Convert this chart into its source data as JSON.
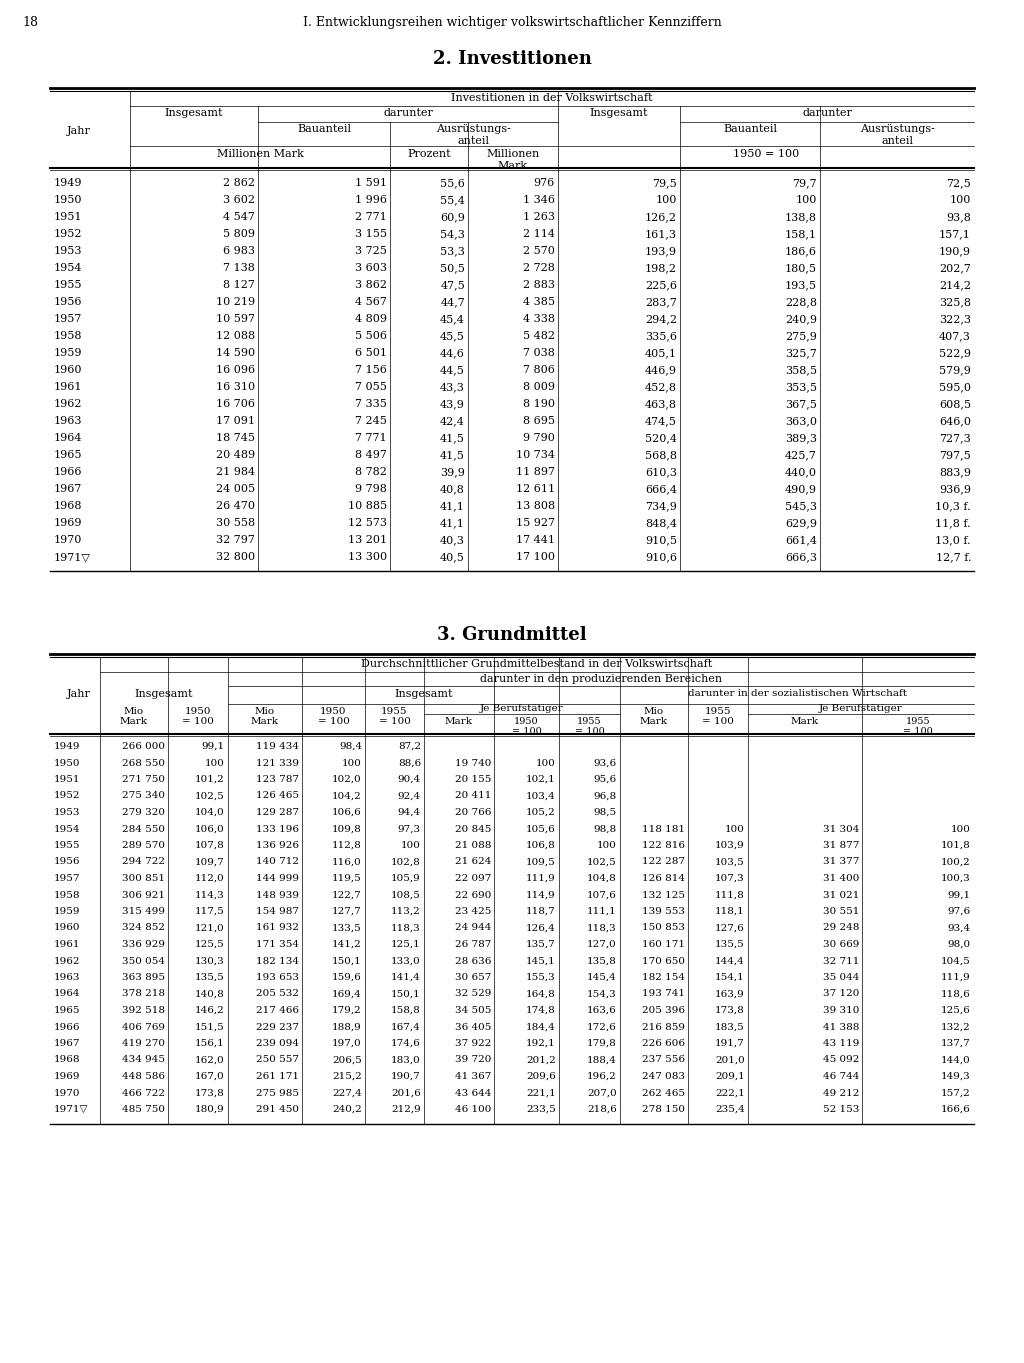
{
  "page_number": "18",
  "page_header": "I. Entwicklungsreihen wichtiger volkswirtschaftlicher Kennziffern",
  "section1_title": "2. Investitionen",
  "section2_title": "3. Grundmittel",
  "table1_data": [
    [
      "1949",
      "2 862",
      "1 591",
      "55,6",
      "976",
      "79,5",
      "79,7",
      "72,5"
    ],
    [
      "1950",
      "3 602",
      "1 996",
      "55,4",
      "1 346",
      "100",
      "100",
      "100"
    ],
    [
      "1951",
      "4 547",
      "2 771",
      "60,9",
      "1 263",
      "126,2",
      "138,8",
      "93,8"
    ],
    [
      "1952",
      "5 809",
      "3 155",
      "54,3",
      "2 114",
      "161,3",
      "158,1",
      "157,1"
    ],
    [
      "1953",
      "6 983",
      "3 725",
      "53,3",
      "2 570",
      "193,9",
      "186,6",
      "190,9"
    ],
    [
      "1954",
      "7 138",
      "3 603",
      "50,5",
      "2 728",
      "198,2",
      "180,5",
      "202,7"
    ],
    [
      "1955",
      "8 127",
      "3 862",
      "47,5",
      "2 883",
      "225,6",
      "193,5",
      "214,2"
    ],
    [
      "1956",
      "10 219",
      "4 567",
      "44,7",
      "4 385",
      "283,7",
      "228,8",
      "325,8"
    ],
    [
      "1957",
      "10 597",
      "4 809",
      "45,4",
      "4 338",
      "294,2",
      "240,9",
      "322,3"
    ],
    [
      "1958",
      "12 088",
      "5 506",
      "45,5",
      "5 482",
      "335,6",
      "275,9",
      "407,3"
    ],
    [
      "1959",
      "14 590",
      "6 501",
      "44,6",
      "7 038",
      "405,1",
      "325,7",
      "522,9"
    ],
    [
      "1960",
      "16 096",
      "7 156",
      "44,5",
      "7 806",
      "446,9",
      "358,5",
      "579,9"
    ],
    [
      "1961",
      "16 310",
      "7 055",
      "43,3",
      "8 009",
      "452,8",
      "353,5",
      "595,0"
    ],
    [
      "1962",
      "16 706",
      "7 335",
      "43,9",
      "8 190",
      "463,8",
      "367,5",
      "608,5"
    ],
    [
      "1963",
      "17 091",
      "7 245",
      "42,4",
      "8 695",
      "474,5",
      "363,0",
      "646,0"
    ],
    [
      "1964",
      "18 745",
      "7 771",
      "41,5",
      "9 790",
      "520,4",
      "389,3",
      "727,3"
    ],
    [
      "1965",
      "20 489",
      "8 497",
      "41,5",
      "10 734",
      "568,8",
      "425,7",
      "797,5"
    ],
    [
      "1966",
      "21 984",
      "8 782",
      "39,9",
      "11 897",
      "610,3",
      "440,0",
      "883,9"
    ],
    [
      "1967",
      "24 005",
      "9 798",
      "40,8",
      "12 611",
      "666,4",
      "490,9",
      "936,9"
    ],
    [
      "1968",
      "26 470",
      "10 885",
      "41,1",
      "13 808",
      "734,9",
      "545,3",
      "10,3 f."
    ],
    [
      "1969",
      "30 558",
      "12 573",
      "41,1",
      "15 927",
      "848,4",
      "629,9",
      "11,8 f."
    ],
    [
      "1970",
      "32 797",
      "13 201",
      "40,3",
      "17 441",
      "910,5",
      "661,4",
      "13,0 f."
    ],
    [
      "1971▽",
      "32 800",
      "13 300",
      "40,5",
      "17 100",
      "910,6",
      "666,3",
      "12,7 f."
    ]
  ],
  "table2_data": [
    [
      "1949",
      "266 000",
      "99,1",
      "119 434",
      "98,4",
      "87,2",
      "",
      "",
      "",
      "",
      "",
      "",
      ""
    ],
    [
      "1950",
      "268 550",
      "100",
      "121 339",
      "100",
      "88,6",
      "19 740",
      "100",
      "93,6",
      "",
      "",
      "",
      ""
    ],
    [
      "1951",
      "271 750",
      "101,2",
      "123 787",
      "102,0",
      "90,4",
      "20 155",
      "102,1",
      "95,6",
      "",
      "",
      "",
      ""
    ],
    [
      "1952",
      "275 340",
      "102,5",
      "126 465",
      "104,2",
      "92,4",
      "20 411",
      "103,4",
      "96,8",
      "",
      "",
      "",
      ""
    ],
    [
      "1953",
      "279 320",
      "104,0",
      "129 287",
      "106,6",
      "94,4",
      "20 766",
      "105,2",
      "98,5",
      "",
      "",
      "",
      ""
    ],
    [
      "1954",
      "284 550",
      "106,0",
      "133 196",
      "109,8",
      "97,3",
      "20 845",
      "105,6",
      "98,8",
      "118 181",
      "100",
      "31 304",
      "100"
    ],
    [
      "1955",
      "289 570",
      "107,8",
      "136 926",
      "112,8",
      "100",
      "21 088",
      "106,8",
      "100",
      "122 816",
      "103,9",
      "31 877",
      "101,8"
    ],
    [
      "1956",
      "294 722",
      "109,7",
      "140 712",
      "116,0",
      "102,8",
      "21 624",
      "109,5",
      "102,5",
      "122 287",
      "103,5",
      "31 377",
      "100,2"
    ],
    [
      "1957",
      "300 851",
      "112,0",
      "144 999",
      "119,5",
      "105,9",
      "22 097",
      "111,9",
      "104,8",
      "126 814",
      "107,3",
      "31 400",
      "100,3"
    ],
    [
      "1958",
      "306 921",
      "114,3",
      "148 939",
      "122,7",
      "108,5",
      "22 690",
      "114,9",
      "107,6",
      "132 125",
      "111,8",
      "31 021",
      "99,1"
    ],
    [
      "1959",
      "315 499",
      "117,5",
      "154 987",
      "127,7",
      "113,2",
      "23 425",
      "118,7",
      "111,1",
      "139 553",
      "118,1",
      "30 551",
      "97,6"
    ],
    [
      "1960",
      "324 852",
      "121,0",
      "161 932",
      "133,5",
      "118,3",
      "24 944",
      "126,4",
      "118,3",
      "150 853",
      "127,6",
      "29 248",
      "93,4"
    ],
    [
      "1961",
      "336 929",
      "125,5",
      "171 354",
      "141,2",
      "125,1",
      "26 787",
      "135,7",
      "127,0",
      "160 171",
      "135,5",
      "30 669",
      "98,0"
    ],
    [
      "1962",
      "350 054",
      "130,3",
      "182 134",
      "150,1",
      "133,0",
      "28 636",
      "145,1",
      "135,8",
      "170 650",
      "144,4",
      "32 711",
      "104,5"
    ],
    [
      "1963",
      "363 895",
      "135,5",
      "193 653",
      "159,6",
      "141,4",
      "30 657",
      "155,3",
      "145,4",
      "182 154",
      "154,1",
      "35 044",
      "111,9"
    ],
    [
      "1964",
      "378 218",
      "140,8",
      "205 532",
      "169,4",
      "150,1",
      "32 529",
      "164,8",
      "154,3",
      "193 741",
      "163,9",
      "37 120",
      "118,6"
    ],
    [
      "1965",
      "392 518",
      "146,2",
      "217 466",
      "179,2",
      "158,8",
      "34 505",
      "174,8",
      "163,6",
      "205 396",
      "173,8",
      "39 310",
      "125,6"
    ],
    [
      "1966",
      "406 769",
      "151,5",
      "229 237",
      "188,9",
      "167,4",
      "36 405",
      "184,4",
      "172,6",
      "216 859",
      "183,5",
      "41 388",
      "132,2"
    ],
    [
      "1967",
      "419 270",
      "156,1",
      "239 094",
      "197,0",
      "174,6",
      "37 922",
      "192,1",
      "179,8",
      "226 606",
      "191,7",
      "43 119",
      "137,7"
    ],
    [
      "1968",
      "434 945",
      "162,0",
      "250 557",
      "206,5",
      "183,0",
      "39 720",
      "201,2",
      "188,4",
      "237 556",
      "201,0",
      "45 092",
      "144,0"
    ],
    [
      "1969",
      "448 586",
      "167,0",
      "261 171",
      "215,2",
      "190,7",
      "41 367",
      "209,6",
      "196,2",
      "247 083",
      "209,1",
      "46 744",
      "149,3"
    ],
    [
      "1970",
      "466 722",
      "173,8",
      "275 985",
      "227,4",
      "201,6",
      "43 644",
      "221,1",
      "207,0",
      "262 465",
      "222,1",
      "49 212",
      "157,2"
    ],
    [
      "1971▽",
      "485 750",
      "180,9",
      "291 450",
      "240,2",
      "212,9",
      "46 100",
      "233,5",
      "218,6",
      "278 150",
      "235,4",
      "52 153",
      "166,6"
    ]
  ]
}
